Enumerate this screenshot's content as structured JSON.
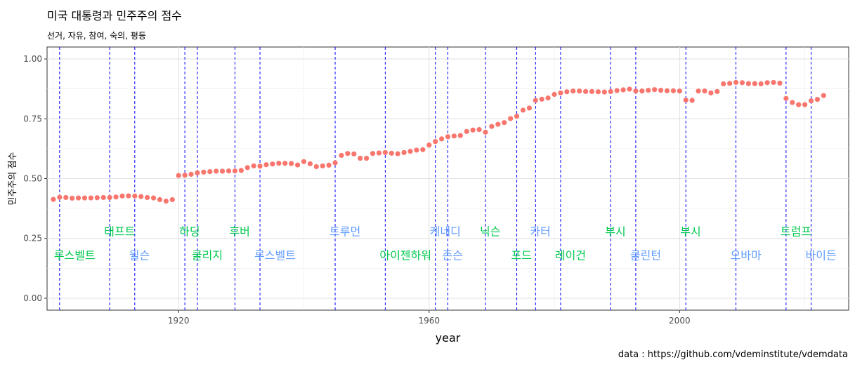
{
  "title": "미국 대통령과 민주주의 점수",
  "subtitle": "선거, 자유, 참여, 숙의, 평등",
  "caption": "data : https://github.com/vdeminstitute/vdemdata",
  "colors": {
    "points": "#f8766d",
    "lines": "#0000ff",
    "republican_label": "#00c94f",
    "democrat_label": "#619cff"
  },
  "chart_data": {
    "type": "scatter",
    "xlabel": "year",
    "ylabel": "민주주의 점수",
    "xlim": [
      1899,
      2027
    ],
    "ylim": [
      -0.05,
      1.05
    ],
    "x_ticks": [
      1920,
      1960,
      2000
    ],
    "y_ticks": [
      0.0,
      0.25,
      0.5,
      0.75,
      1.0
    ],
    "y_tick_labels": [
      "0.00",
      "0.25",
      "0.50",
      "0.75",
      "1.00"
    ],
    "grid": true,
    "points": [
      [
        1900,
        0.413
      ],
      [
        1901,
        0.422
      ],
      [
        1902,
        0.421
      ],
      [
        1903,
        0.418
      ],
      [
        1904,
        0.419
      ],
      [
        1905,
        0.419
      ],
      [
        1906,
        0.419
      ],
      [
        1907,
        0.42
      ],
      [
        1908,
        0.421
      ],
      [
        1909,
        0.421
      ],
      [
        1910,
        0.423
      ],
      [
        1911,
        0.427
      ],
      [
        1912,
        0.428
      ],
      [
        1913,
        0.427
      ],
      [
        1914,
        0.425
      ],
      [
        1915,
        0.421
      ],
      [
        1916,
        0.419
      ],
      [
        1917,
        0.412
      ],
      [
        1918,
        0.406
      ],
      [
        1919,
        0.412
      ],
      [
        1920,
        0.513
      ],
      [
        1921,
        0.514
      ],
      [
        1922,
        0.518
      ],
      [
        1923,
        0.524
      ],
      [
        1924,
        0.527
      ],
      [
        1925,
        0.529
      ],
      [
        1926,
        0.531
      ],
      [
        1927,
        0.531
      ],
      [
        1928,
        0.532
      ],
      [
        1929,
        0.532
      ],
      [
        1930,
        0.534
      ],
      [
        1931,
        0.546
      ],
      [
        1932,
        0.553
      ],
      [
        1933,
        0.552
      ],
      [
        1934,
        0.558
      ],
      [
        1935,
        0.561
      ],
      [
        1936,
        0.564
      ],
      [
        1937,
        0.564
      ],
      [
        1938,
        0.563
      ],
      [
        1939,
        0.557
      ],
      [
        1940,
        0.571
      ],
      [
        1941,
        0.562
      ],
      [
        1942,
        0.55
      ],
      [
        1943,
        0.553
      ],
      [
        1944,
        0.556
      ],
      [
        1945,
        0.566
      ],
      [
        1946,
        0.597
      ],
      [
        1947,
        0.605
      ],
      [
        1948,
        0.603
      ],
      [
        1949,
        0.585
      ],
      [
        1950,
        0.585
      ],
      [
        1951,
        0.605
      ],
      [
        1952,
        0.607
      ],
      [
        1953,
        0.609
      ],
      [
        1954,
        0.606
      ],
      [
        1955,
        0.604
      ],
      [
        1956,
        0.609
      ],
      [
        1957,
        0.614
      ],
      [
        1958,
        0.619
      ],
      [
        1959,
        0.621
      ],
      [
        1960,
        0.64
      ],
      [
        1961,
        0.655
      ],
      [
        1962,
        0.666
      ],
      [
        1963,
        0.675
      ],
      [
        1964,
        0.678
      ],
      [
        1965,
        0.68
      ],
      [
        1966,
        0.697
      ],
      [
        1967,
        0.703
      ],
      [
        1968,
        0.705
      ],
      [
        1969,
        0.694
      ],
      [
        1970,
        0.718
      ],
      [
        1971,
        0.727
      ],
      [
        1972,
        0.734
      ],
      [
        1973,
        0.751
      ],
      [
        1974,
        0.761
      ],
      [
        1975,
        0.786
      ],
      [
        1976,
        0.795
      ],
      [
        1977,
        0.827
      ],
      [
        1978,
        0.832
      ],
      [
        1979,
        0.837
      ],
      [
        1980,
        0.852
      ],
      [
        1981,
        0.858
      ],
      [
        1982,
        0.863
      ],
      [
        1983,
        0.866
      ],
      [
        1984,
        0.866
      ],
      [
        1985,
        0.864
      ],
      [
        1986,
        0.864
      ],
      [
        1987,
        0.863
      ],
      [
        1988,
        0.862
      ],
      [
        1989,
        0.864
      ],
      [
        1990,
        0.868
      ],
      [
        1991,
        0.871
      ],
      [
        1992,
        0.874
      ],
      [
        1993,
        0.866
      ],
      [
        1994,
        0.866
      ],
      [
        1995,
        0.869
      ],
      [
        1996,
        0.872
      ],
      [
        1997,
        0.869
      ],
      [
        1998,
        0.867
      ],
      [
        1999,
        0.867
      ],
      [
        2000,
        0.866
      ],
      [
        2001,
        0.828
      ],
      [
        2002,
        0.827
      ],
      [
        2003,
        0.866
      ],
      [
        2004,
        0.866
      ],
      [
        2005,
        0.858
      ],
      [
        2006,
        0.864
      ],
      [
        2007,
        0.896
      ],
      [
        2008,
        0.898
      ],
      [
        2009,
        0.902
      ],
      [
        2010,
        0.901
      ],
      [
        2011,
        0.897
      ],
      [
        2012,
        0.897
      ],
      [
        2013,
        0.896
      ],
      [
        2014,
        0.901
      ],
      [
        2015,
        0.902
      ],
      [
        2016,
        0.899
      ],
      [
        2017,
        0.835
      ],
      [
        2018,
        0.818
      ],
      [
        2019,
        0.809
      ],
      [
        2020,
        0.809
      ],
      [
        2021,
        0.825
      ],
      [
        2022,
        0.831
      ],
      [
        2023,
        0.847
      ]
    ],
    "presidents": [
      {
        "name": "루스벨트",
        "start": 1901,
        "party": "republican",
        "row": "lower"
      },
      {
        "name": "태프트",
        "start": 1909,
        "party": "republican",
        "row": "upper"
      },
      {
        "name": "윌슨",
        "start": 1913,
        "party": "democrat",
        "row": "lower"
      },
      {
        "name": "하딩",
        "start": 1921,
        "party": "republican",
        "row": "upper"
      },
      {
        "name": "쿨리지",
        "start": 1923,
        "party": "republican",
        "row": "lower"
      },
      {
        "name": "후버",
        "start": 1929,
        "party": "republican",
        "row": "upper"
      },
      {
        "name": "루스벨트",
        "start": 1933,
        "party": "democrat",
        "row": "lower"
      },
      {
        "name": "트루먼",
        "start": 1945,
        "party": "democrat",
        "row": "upper"
      },
      {
        "name": "아이젠하워",
        "start": 1953,
        "party": "republican",
        "row": "lower"
      },
      {
        "name": "케네디",
        "start": 1961,
        "party": "democrat",
        "row": "upper"
      },
      {
        "name": "존슨",
        "start": 1963,
        "party": "democrat",
        "row": "lower"
      },
      {
        "name": "닉슨",
        "start": 1969,
        "party": "republican",
        "row": "upper"
      },
      {
        "name": "포드",
        "start": 1974,
        "party": "republican",
        "row": "lower"
      },
      {
        "name": "카터",
        "start": 1977,
        "party": "democrat",
        "row": "upper"
      },
      {
        "name": "레이건",
        "start": 1981,
        "party": "republican",
        "row": "lower"
      },
      {
        "name": "부시",
        "start": 1989,
        "party": "republican",
        "row": "upper"
      },
      {
        "name": "클린턴",
        "start": 1993,
        "party": "democrat",
        "row": "lower"
      },
      {
        "name": "부시",
        "start": 2001,
        "party": "republican",
        "row": "upper"
      },
      {
        "name": "오바마",
        "start": 2009,
        "party": "democrat",
        "row": "lower"
      },
      {
        "name": "트럼프",
        "start": 2017,
        "party": "republican",
        "row": "upper"
      },
      {
        "name": "바이든",
        "start": 2021,
        "party": "democrat",
        "row": "lower"
      }
    ],
    "label_rows": {
      "upper": 0.28,
      "lower": 0.18
    }
  }
}
